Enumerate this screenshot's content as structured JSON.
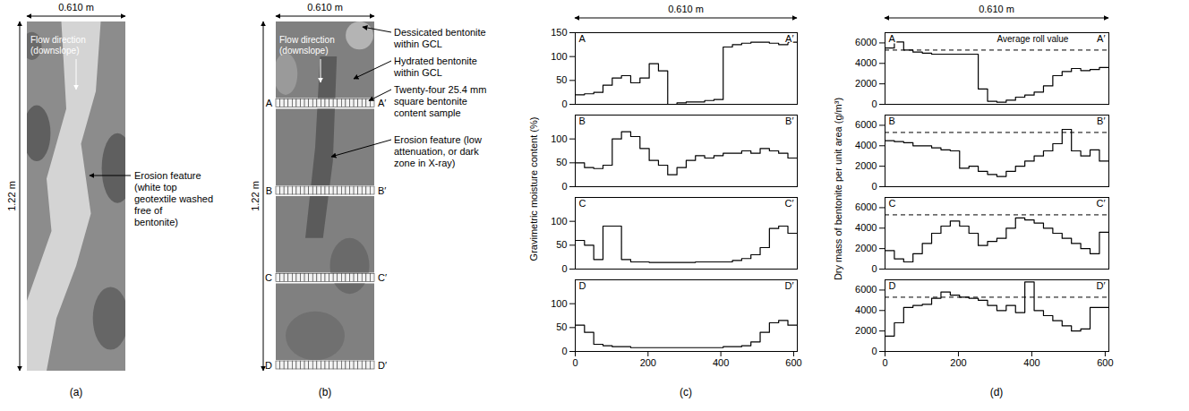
{
  "panel_a": {
    "label": "(a)",
    "width_label": "0.610 m",
    "height_label": "1.22 m",
    "flow_label": "Flow direction (downslope)",
    "annotation": "Erosion feature (white top geotextile washed free of bentonite)"
  },
  "panel_b": {
    "label": "(b)",
    "width_label": "0.610 m",
    "height_label": "1.22 m",
    "flow_label": "Flow direction (downslope)",
    "annotations": [
      "Dessicated bentonite within GCL",
      "Hydrated bentonite within GCL",
      "Twenty-four 25.4 mm square bentonite content sample",
      "Erosion feature (low attenuation, or dark zone in X-ray)"
    ]
  },
  "chart_data": [
    {
      "type": "step",
      "label": "(c)",
      "width_label": "0.610 m",
      "ylabel": "Gravimetric moisture content (%)",
      "color": "#000000",
      "bins": [
        0,
        25.4,
        50.8,
        76.2,
        101.6,
        127,
        152.4,
        177.8,
        203.2,
        228.6,
        254,
        279.4,
        304.8,
        330.2,
        355.6,
        381,
        406.4,
        431.8,
        457.2,
        482.6,
        508,
        533.4,
        558.8,
        584.2,
        609.6
      ],
      "xlim": [
        0,
        610
      ],
      "xticks": [
        0,
        200,
        400,
        600
      ],
      "sections": [
        {
          "start_label": "A",
          "end_label": "A′",
          "ylim": [
            0,
            150
          ],
          "yticks": [
            0,
            50,
            100,
            150
          ],
          "values": [
            20,
            22,
            25,
            40,
            55,
            60,
            45,
            55,
            85,
            70,
            0,
            3,
            5,
            5,
            8,
            10,
            120,
            125,
            128,
            130,
            130,
            128,
            125,
            130
          ]
        },
        {
          "start_label": "B",
          "end_label": "B′",
          "ylim": [
            0,
            150
          ],
          "yticks": [
            0,
            50,
            100
          ],
          "values": [
            50,
            40,
            38,
            45,
            100,
            115,
            105,
            80,
            55,
            45,
            25,
            40,
            55,
            65,
            60,
            65,
            70,
            70,
            75,
            70,
            80,
            75,
            70,
            60
          ]
        },
        {
          "start_label": "C",
          "end_label": "C′",
          "ylim": [
            0,
            150
          ],
          "yticks": [
            0,
            50,
            100
          ],
          "values": [
            60,
            50,
            20,
            90,
            90,
            20,
            15,
            15,
            14,
            14,
            14,
            14,
            14,
            15,
            15,
            15,
            15,
            18,
            22,
            30,
            45,
            85,
            90,
            75
          ]
        },
        {
          "start_label": "D",
          "end_label": "D′",
          "ylim": [
            0,
            150
          ],
          "yticks": [
            0,
            50,
            100
          ],
          "values": [
            55,
            40,
            15,
            12,
            10,
            10,
            8,
            8,
            8,
            8,
            8,
            8,
            8,
            8,
            8,
            8,
            10,
            10,
            12,
            20,
            40,
            60,
            65,
            55
          ]
        }
      ]
    },
    {
      "type": "step",
      "label": "(d)",
      "width_label": "0.610 m",
      "ylabel": "Dry mass of bentonite per unit area (g/m³)",
      "color": "#000000",
      "bins": [
        0,
        25.4,
        50.8,
        76.2,
        101.6,
        127,
        152.4,
        177.8,
        203.2,
        228.6,
        254,
        279.4,
        304.8,
        330.2,
        355.6,
        381,
        406.4,
        431.8,
        457.2,
        482.6,
        508,
        533.4,
        558.8,
        584.2,
        609.6
      ],
      "xlim": [
        0,
        610
      ],
      "xticks": [
        0,
        200,
        400,
        600
      ],
      "reference_line": {
        "value": 5300,
        "label": "Average roll value",
        "line_style": "dashed"
      },
      "sections": [
        {
          "start_label": "A",
          "end_label": "A′",
          "ylim": [
            0,
            7000
          ],
          "yticks": [
            0,
            2000,
            4000,
            6000
          ],
          "values": [
            5500,
            6100,
            5300,
            5100,
            5000,
            4900,
            4900,
            4900,
            4900,
            4900,
            1500,
            300,
            200,
            400,
            700,
            900,
            1200,
            1800,
            2800,
            3200,
            3500,
            3300,
            3400,
            3600
          ]
        },
        {
          "start_label": "B",
          "end_label": "B′",
          "ylim": [
            0,
            7000
          ],
          "yticks": [
            0,
            2000,
            4000,
            6000
          ],
          "values": [
            4500,
            4400,
            4300,
            4000,
            4000,
            3800,
            3600,
            3500,
            1800,
            2000,
            1500,
            1200,
            1000,
            1500,
            2000,
            2500,
            3000,
            3500,
            4200,
            5600,
            3500,
            3000,
            3600,
            2500
          ]
        },
        {
          "start_label": "C",
          "end_label": "C′",
          "ylim": [
            0,
            7000
          ],
          "yticks": [
            0,
            2000,
            4000,
            6000
          ],
          "values": [
            1800,
            1000,
            700,
            1500,
            2500,
            3500,
            4200,
            4700,
            4200,
            3500,
            2300,
            2700,
            3000,
            4000,
            5000,
            4800,
            4500,
            4000,
            3500,
            3000,
            2500,
            2000,
            1500,
            3600
          ]
        },
        {
          "start_label": "D",
          "end_label": "D′",
          "ylim": [
            0,
            7000
          ],
          "yticks": [
            0,
            2000,
            4000,
            6000
          ],
          "values": [
            1500,
            2800,
            4300,
            4500,
            4600,
            5200,
            5800,
            5500,
            5300,
            5200,
            5000,
            4500,
            4000,
            4500,
            3800,
            6800,
            4000,
            3500,
            3000,
            2500,
            2000,
            2200,
            4300,
            4300
          ]
        }
      ]
    }
  ]
}
